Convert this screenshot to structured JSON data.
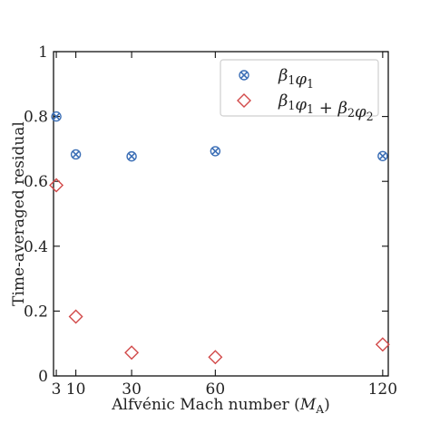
{
  "chart_data": {
    "type": "scatter",
    "title": "",
    "xlabel": "Alfvénic Mach number (M_A)",
    "ylabel": "Time-averaged residual",
    "xlim": [
      2,
      122
    ],
    "ylim": [
      0,
      1
    ],
    "grid": false,
    "legend_position": "top-right",
    "x_ticks": [
      3,
      10,
      30,
      60,
      120
    ],
    "x_tick_labels": [
      "3",
      "10",
      "30",
      "60",
      "120"
    ],
    "y_ticks": [
      0,
      0.2,
      0.4,
      0.6,
      0.8,
      1
    ],
    "y_tick_labels": [
      "0",
      "0.2",
      "0.4",
      "0.6",
      "0.8",
      "1"
    ],
    "series": [
      {
        "name": "β1φ1",
        "marker": "x-circle",
        "color": "#3c6fb6",
        "points": [
          {
            "x": 3,
            "y": 0.8
          },
          {
            "x": 10,
            "y": 0.683
          },
          {
            "x": 30,
            "y": 0.677
          },
          {
            "x": 60,
            "y": 0.693
          },
          {
            "x": 120,
            "y": 0.678
          }
        ]
      },
      {
        "name": "β1φ1 + β2φ2",
        "marker": "diamond",
        "color": "#d24a4a",
        "points": [
          {
            "x": 3,
            "y": 0.588
          },
          {
            "x": 10,
            "y": 0.183
          },
          {
            "x": 30,
            "y": 0.072
          },
          {
            "x": 60,
            "y": 0.058
          },
          {
            "x": 120,
            "y": 0.097
          }
        ]
      }
    ]
  }
}
